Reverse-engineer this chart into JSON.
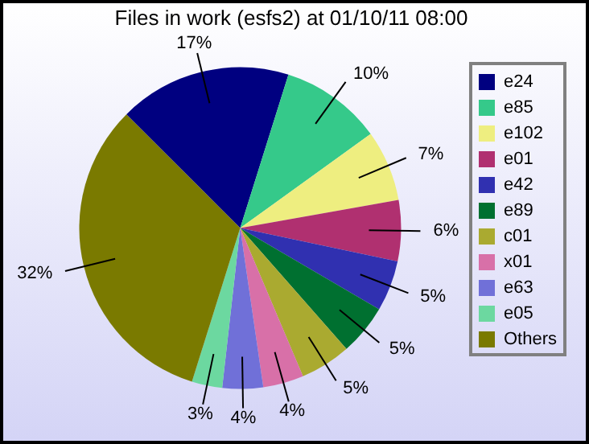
{
  "chart_data": {
    "type": "pie",
    "title": "Files in work (esfs2) at 01/10/11 08:00",
    "categories": [
      "e24",
      "e85",
      "e102",
      "e01",
      "e42",
      "e89",
      "c01",
      "x01",
      "e63",
      "e05",
      "Others"
    ],
    "values": [
      17,
      10,
      7,
      6,
      5,
      5,
      5,
      4,
      4,
      3,
      32
    ],
    "value_labels": [
      "17%",
      "10%",
      "7%",
      "6%",
      "5%",
      "5%",
      "5%",
      "4%",
      "4%",
      "3%",
      "32%"
    ],
    "colors": [
      "#000080",
      "#35c98a",
      "#eeee80",
      "#b03070",
      "#3030b0",
      "#007030",
      "#aaaa30",
      "#d870a8",
      "#7070d8",
      "#6cd8a0",
      "#7a7a00"
    ],
    "legend": "right"
  }
}
